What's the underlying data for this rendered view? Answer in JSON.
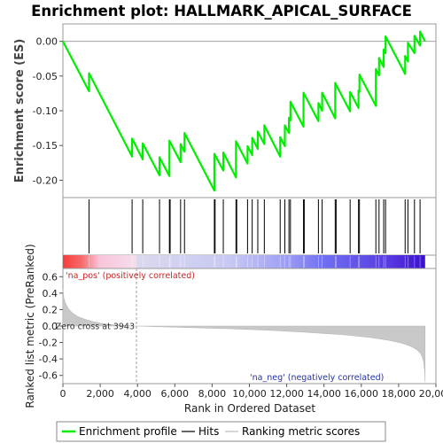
{
  "title": "Enrichment plot: HALLMARK_APICAL_SURFACE",
  "colors": {
    "enrichment": "#00ee00",
    "hits": "#000000",
    "metric_fill": "#c8c8c8",
    "zero_line": "#a0a0a0",
    "pos_label": "#cc2222",
    "neg_label": "#2233aa"
  },
  "chart_data": [
    {
      "type": "line",
      "panel": "enrichment",
      "ylabel": "Enrichment score (ES)",
      "xlim": [
        0,
        20000
      ],
      "ylim": [
        -0.225,
        0.025
      ],
      "yticks": [
        0.0,
        -0.05,
        -0.1,
        -0.15,
        -0.2
      ],
      "ytick_labels": [
        "0.00",
        "-0.05",
        "-0.10",
        "-0.15",
        "-0.20"
      ],
      "hline": 0.0,
      "series": [
        {
          "name": "Enrichment profile",
          "x": [
            0,
            1400,
            1401,
            3710,
            3711,
            4280,
            4281,
            5180,
            5181,
            5710,
            5711,
            6310,
            6311,
            6520,
            6521,
            8120,
            8121,
            8600,
            8601,
            9280,
            9281,
            9900,
            9901,
            10150,
            10151,
            10450,
            10451,
            10800,
            10801,
            11650,
            11651,
            11900,
            11901,
            12120,
            12121,
            12200,
            12201,
            12900,
            12901,
            13700,
            13701,
            13900,
            13901,
            14600,
            14601,
            15400,
            15401,
            15850,
            15851,
            15900,
            15901,
            16780,
            16781,
            16950,
            16951,
            17200,
            17201,
            17300,
            17301,
            18350,
            18351,
            18500,
            18501,
            18850,
            18851,
            19150,
            19151,
            19420
          ],
          "y": [
            0.0,
            -0.072,
            -0.046,
            -0.166,
            -0.14,
            -0.17,
            -0.147,
            -0.193,
            -0.167,
            -0.194,
            -0.143,
            -0.174,
            -0.148,
            -0.159,
            -0.132,
            -0.215,
            -0.162,
            -0.186,
            -0.16,
            -0.196,
            -0.144,
            -0.176,
            -0.151,
            -0.164,
            -0.139,
            -0.155,
            -0.13,
            -0.148,
            -0.121,
            -0.166,
            -0.138,
            -0.151,
            -0.121,
            -0.132,
            -0.11,
            -0.114,
            -0.087,
            -0.123,
            -0.074,
            -0.115,
            -0.089,
            -0.1,
            -0.074,
            -0.111,
            -0.06,
            -0.101,
            -0.073,
            -0.096,
            -0.071,
            -0.073,
            -0.048,
            -0.093,
            -0.04,
            -0.049,
            -0.024,
            -0.037,
            -0.012,
            -0.017,
            0.007,
            -0.047,
            -0.021,
            -0.029,
            -0.002,
            -0.017,
            0.008,
            -0.006,
            0.014,
            0.0
          ]
        }
      ]
    },
    {
      "type": "bar",
      "panel": "hits",
      "name": "Hits",
      "x": [
        1400,
        3710,
        4280,
        5180,
        5710,
        5750,
        6310,
        6520,
        8120,
        8160,
        8600,
        9280,
        9320,
        9900,
        10150,
        10450,
        10800,
        11650,
        11900,
        12120,
        12200,
        12900,
        12940,
        13700,
        13900,
        14600,
        14650,
        15400,
        15850,
        15900,
        16780,
        16950,
        17200,
        17300,
        18350,
        18500,
        18850,
        19150
      ]
    },
    {
      "type": "heatmap",
      "panel": "rank-bar",
      "name": "Ranked list gradient",
      "xlim": [
        0,
        19420
      ],
      "stops": [
        {
          "x": 0,
          "color": "#f53c3c"
        },
        {
          "x": 1000,
          "color": "#f76a6a"
        },
        {
          "x": 1950,
          "color": "#f8c4da"
        },
        {
          "x": 3900,
          "color": "#f5ddec"
        },
        {
          "x": 4000,
          "color": "#d9d9ee"
        },
        {
          "x": 9000,
          "color": "#c8c8f4"
        },
        {
          "x": 11800,
          "color": "#a0a0f5"
        },
        {
          "x": 14000,
          "color": "#6f6ff2"
        },
        {
          "x": 17700,
          "color": "#5535e0"
        },
        {
          "x": 19420,
          "color": "#3a10cf"
        }
      ],
      "pos_label": "'na_pos' (positively correlated)",
      "neg_label": "'na_neg' (negatively correlated)"
    },
    {
      "type": "area",
      "panel": "metric",
      "name": "Ranking metric scores",
      "xlabel": "Rank in Ordered Dataset",
      "ylabel": "Ranked list metric (PreRanked)",
      "xlim": [
        0,
        20000
      ],
      "ylim": [
        -0.7,
        0.7
      ],
      "xticks": [
        0,
        2000,
        4000,
        6000,
        8000,
        10000,
        12000,
        14000,
        16000,
        18000,
        20000
      ],
      "xtick_labels": [
        "0",
        "2,000",
        "4,000",
        "6,000",
        "8,000",
        "10,000",
        "12,000",
        "14,000",
        "16,000",
        "18,000",
        "20,000"
      ],
      "yticks": [
        0.6,
        0.4,
        0.2,
        0.0,
        -0.2,
        -0.4,
        -0.6
      ],
      "ytick_labels": [
        "0.6",
        "0.4",
        "0.2",
        "0.0",
        "-0.2",
        "-0.4",
        "-0.6"
      ],
      "zero_cross": 3943,
      "zero_cross_label": "Zero cross at 3943",
      "x": [
        0,
        50,
        150,
        300,
        500,
        800,
        1200,
        1600,
        2000,
        2500,
        3000,
        3500,
        3943,
        5000,
        7000,
        9000,
        11000,
        13000,
        15000,
        16500,
        17500,
        18200,
        18700,
        19000,
        19200,
        19330,
        19400,
        19420
      ],
      "values": [
        0.45,
        0.34,
        0.27,
        0.21,
        0.16,
        0.115,
        0.08,
        0.055,
        0.035,
        0.02,
        0.01,
        0.004,
        0.0,
        -0.008,
        -0.02,
        -0.033,
        -0.05,
        -0.075,
        -0.105,
        -0.14,
        -0.175,
        -0.21,
        -0.25,
        -0.29,
        -0.34,
        -0.42,
        -0.55,
        -0.68
      ]
    }
  ],
  "legend": {
    "items": [
      {
        "label": "Enrichment profile",
        "type": "line",
        "color": "#00ee00"
      },
      {
        "label": "Hits",
        "type": "line",
        "color": "#000000"
      },
      {
        "label": "Ranking metric scores",
        "type": "line",
        "color": "#c8c8c8"
      }
    ]
  }
}
